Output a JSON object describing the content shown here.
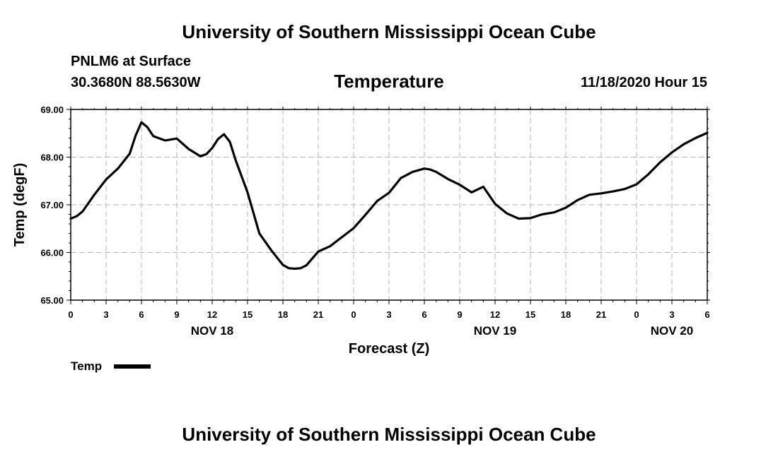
{
  "header": {
    "title": "University of Southern Mississippi Ocean Cube",
    "station": "PNLM6 at Surface",
    "coordinates": "30.3680N 88.5630W",
    "datetime": "11/18/2020 Hour 15"
  },
  "footer": {
    "title": "University of Southern Mississippi Ocean Cube"
  },
  "legend": {
    "label": "Temp"
  },
  "colors": {
    "line": "#000000",
    "grid": "#b4b4b4"
  },
  "chart_data": {
    "type": "line",
    "title": "Temperature",
    "xlabel": "Forecast (Z)",
    "ylabel": "Temp (degF)",
    "ylim": [
      65.0,
      69.0
    ],
    "yticks": [
      "65.00",
      "66.00",
      "67.00",
      "68.00",
      "69.00"
    ],
    "xlim": [
      0,
      54
    ],
    "xtick_hours": [
      0,
      3,
      6,
      9,
      12,
      15,
      18,
      21,
      24,
      27,
      30,
      33,
      36,
      39,
      42,
      45,
      48,
      51,
      54
    ],
    "xtick_labels": [
      "0",
      "3",
      "6",
      "9",
      "12",
      "15",
      "18",
      "21",
      "0",
      "3",
      "6",
      "9",
      "12",
      "15",
      "18",
      "21",
      "0",
      "3",
      "6"
    ],
    "day_labels": [
      {
        "hour": 12,
        "label": "NOV 18"
      },
      {
        "hour": 36,
        "label": "NOV 19"
      },
      {
        "hour": 51,
        "label": "NOV 20"
      }
    ],
    "grid": true,
    "series": [
      {
        "name": "Temp",
        "x": [
          0,
          0.5,
          1,
          2,
          3,
          4,
          5,
          5.5,
          6,
          6.5,
          7,
          8,
          9,
          10,
          11,
          11.5,
          12,
          12.5,
          13,
          13.5,
          14,
          15,
          16,
          17,
          18,
          18.5,
          19,
          19.5,
          20,
          21,
          22,
          23,
          24,
          25,
          26,
          27,
          28,
          29,
          30,
          30.5,
          31,
          32,
          33,
          34,
          35,
          36,
          37,
          38,
          39,
          40,
          41,
          42,
          43,
          44,
          45,
          46,
          47,
          48,
          49,
          50,
          51,
          52,
          53,
          54
        ],
        "values": [
          66.71,
          66.76,
          66.86,
          67.21,
          67.53,
          67.76,
          68.07,
          68.45,
          68.73,
          68.63,
          68.44,
          68.35,
          68.39,
          68.17,
          68.02,
          68.06,
          68.19,
          68.38,
          68.48,
          68.32,
          67.93,
          67.26,
          66.4,
          66.05,
          65.74,
          65.67,
          65.66,
          65.67,
          65.73,
          66.02,
          66.13,
          66.32,
          66.51,
          66.79,
          67.08,
          67.25,
          67.56,
          67.69,
          67.76,
          67.74,
          67.69,
          67.54,
          67.42,
          67.26,
          67.38,
          67.02,
          66.82,
          66.71,
          66.72,
          66.8,
          66.84,
          66.94,
          67.1,
          67.21,
          67.24,
          67.28,
          67.33,
          67.43,
          67.64,
          67.89,
          68.1,
          68.27,
          68.4,
          68.51
        ]
      }
    ]
  }
}
